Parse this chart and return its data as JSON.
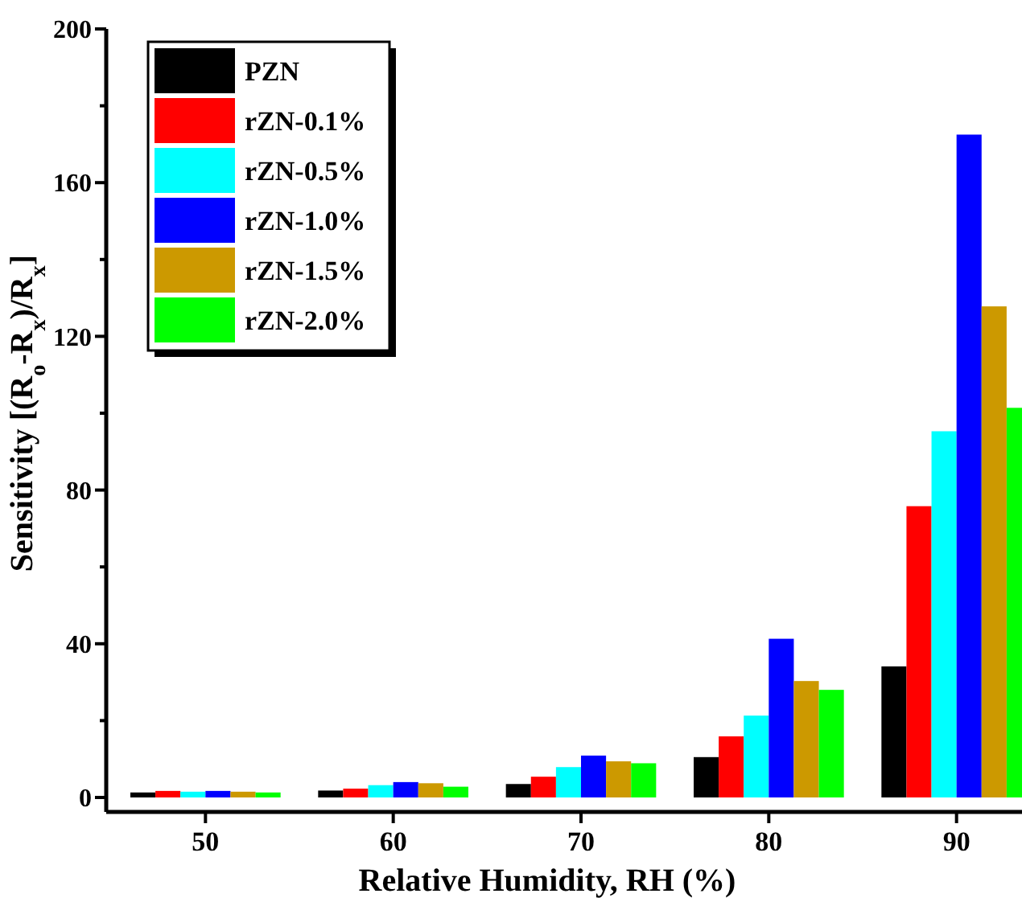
{
  "chart_data": {
    "type": "bar",
    "xlabel": "Relative Humidity, RH (%)",
    "ylabel": "Sensitivity [(R$_{o}$-R$_{x}$)/R$_{x}$]",
    "categories": [
      "50",
      "60",
      "70",
      "80",
      "90"
    ],
    "series": [
      {
        "name": "PZN",
        "color": "#000000",
        "values": [
          1.3,
          1.8,
          3.5,
          10.5,
          34.1
        ]
      },
      {
        "name": "rZN-0.1%",
        "color": "#ff0000",
        "values": [
          1.7,
          2.3,
          5.4,
          15.9,
          75.8
        ]
      },
      {
        "name": "rZN-0.5%",
        "color": "#00ffff",
        "values": [
          1.5,
          3.2,
          7.9,
          21.3,
          95.3
        ]
      },
      {
        "name": "rZN-1.0%",
        "color": "#0000ff",
        "values": [
          1.7,
          4,
          10.9,
          41.3,
          172.5
        ]
      },
      {
        "name": "rZN-1.5%",
        "color": "#cc9900",
        "values": [
          1.5,
          3.7,
          9.4,
          30.3,
          127.8
        ]
      },
      {
        "name": "rZN-2.0%",
        "color": "#00ff00",
        "values": [
          1.3,
          2.8,
          8.9,
          28,
          101.4
        ]
      }
    ],
    "ylim": [
      0,
      200
    ],
    "yticks": [
      0,
      {
        "value": 20,
        "label": null
      },
      40,
      {
        "value": 60,
        "label": null
      },
      80,
      {
        "value": 100,
        "label": null
      },
      120,
      {
        "value": 140,
        "label": null
      },
      160,
      {
        "value": 180,
        "label": null
      },
      200
    ],
    "legend": "top left",
    "grid": false
  }
}
